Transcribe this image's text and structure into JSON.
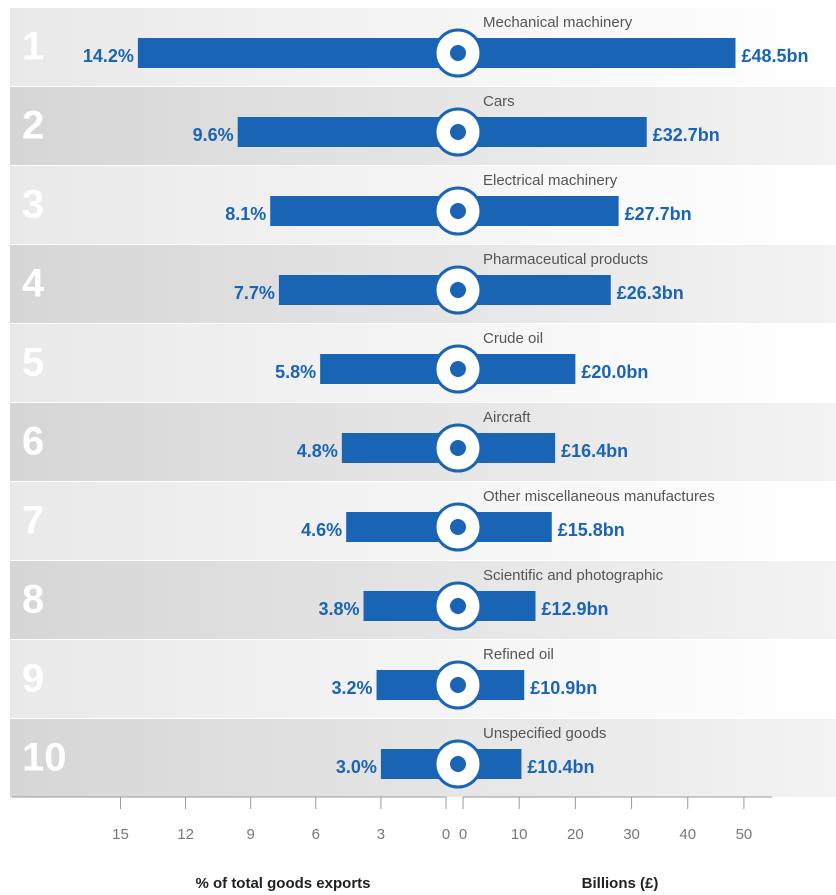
{
  "chart_data": {
    "type": "butterfly-bar",
    "ranks": [
      1,
      2,
      3,
      4,
      5,
      6,
      7,
      8,
      9,
      10
    ],
    "categories": [
      "Mechanical machinery",
      "Cars",
      "Electrical machinery",
      "Pharmaceutical products",
      "Crude oil",
      "Aircraft",
      "Other miscellaneous manufactures",
      "Scientific and photographic",
      "Refined oil",
      "Unspecified goods"
    ],
    "color": "#1a64b6",
    "left": {
      "axis_label": "% of total goods exports",
      "values": [
        14.2,
        9.6,
        8.1,
        7.7,
        5.8,
        4.8,
        4.6,
        3.8,
        3.2,
        3.0
      ],
      "value_labels": [
        "14.2%",
        "9.6%",
        "8.1%",
        "7.7%",
        "5.8%",
        "4.8%",
        "4.6%",
        "3.8%",
        "3.2%",
        "3.0%"
      ],
      "xlim": [
        0,
        20
      ],
      "xticks": [
        15,
        12,
        9,
        6,
        3,
        0
      ]
    },
    "right": {
      "axis_label": "Billions (£)",
      "values": [
        48.5,
        32.7,
        27.7,
        26.3,
        20.0,
        16.4,
        15.8,
        12.9,
        10.9,
        10.4
      ],
      "value_labels": [
        "£48.5bn",
        "£32.7bn",
        "£27.7bn",
        "£26.3bn",
        "£20.0bn",
        "£16.4bn",
        "£15.8bn",
        "£12.9bn",
        "£10.9bn",
        "£10.4bn"
      ],
      "xlim": [
        0,
        55
      ],
      "xticks": [
        0,
        10,
        20,
        30,
        40,
        50
      ]
    }
  }
}
